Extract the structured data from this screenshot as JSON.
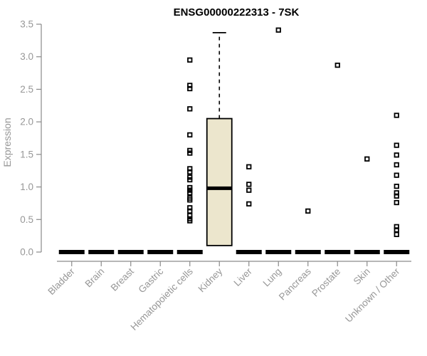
{
  "chart_data": {
    "type": "boxplot",
    "title": "ENSG00000222313 - 7SK",
    "ylabel": "Expression",
    "xlabel": "",
    "ylim": [
      0,
      3.5
    ],
    "ytick_labels": [
      "0.0",
      "0.5",
      "1.0",
      "1.5",
      "2.0",
      "2.5",
      "3.0",
      "3.5"
    ],
    "grid": false,
    "legend": null,
    "categories": [
      "Bladder",
      "Brain",
      "Breast",
      "Gastric",
      "Hematopoietic cells",
      "Kidney",
      "Liver",
      "Lung",
      "Pancreas",
      "Prostate",
      "Skin",
      "Unknown / Other"
    ],
    "boxes": [
      {
        "category": "Bladder",
        "median": 0,
        "q1": 0,
        "q3": 0,
        "whisker_low": null,
        "whisker_high": null,
        "outliers": []
      },
      {
        "category": "Brain",
        "median": 0,
        "q1": 0,
        "q3": 0,
        "whisker_low": null,
        "whisker_high": null,
        "outliers": []
      },
      {
        "category": "Breast",
        "median": 0,
        "q1": 0,
        "q3": 0,
        "whisker_low": null,
        "whisker_high": null,
        "outliers": []
      },
      {
        "category": "Gastric",
        "median": 0,
        "q1": 0,
        "q3": 0,
        "whisker_low": null,
        "whisker_high": null,
        "outliers": []
      },
      {
        "category": "Hematopoietic cells",
        "median": 0,
        "q1": 0,
        "q3": 0,
        "whisker_low": null,
        "whisker_high": null,
        "outliers": [
          2.95,
          2.56,
          2.51,
          2.2,
          1.8,
          1.56,
          1.52,
          1.28,
          1.23,
          1.15,
          1.11,
          0.99,
          0.95,
          0.91,
          0.83,
          0.8,
          0.68,
          0.63,
          0.56,
          0.51,
          0.48
        ]
      },
      {
        "category": "Kidney",
        "median": 0.98,
        "q1": 0.1,
        "q3": 2.05,
        "whisker_low": null,
        "whisker_high": 3.37,
        "outliers": []
      },
      {
        "category": "Liver",
        "median": 0,
        "q1": 0,
        "q3": 0,
        "whisker_low": null,
        "whisker_high": null,
        "outliers": [
          1.31,
          1.04,
          0.95,
          0.74
        ]
      },
      {
        "category": "Lung",
        "median": 0,
        "q1": 0,
        "q3": 0,
        "whisker_low": null,
        "whisker_high": null,
        "outliers": [
          3.41
        ]
      },
      {
        "category": "Pancreas",
        "median": 0,
        "q1": 0,
        "q3": 0,
        "whisker_low": null,
        "whisker_high": null,
        "outliers": [
          0.63
        ]
      },
      {
        "category": "Prostate",
        "median": 0,
        "q1": 0,
        "q3": 0,
        "whisker_low": null,
        "whisker_high": null,
        "outliers": [
          2.87
        ]
      },
      {
        "category": "Skin",
        "median": 0,
        "q1": 0,
        "q3": 0,
        "whisker_low": null,
        "whisker_high": null,
        "outliers": [
          1.43
        ]
      },
      {
        "category": "Unknown / Other",
        "median": 0,
        "q1": 0,
        "q3": 0,
        "whisker_low": null,
        "whisker_high": null,
        "outliers": [
          2.1,
          1.64,
          1.49,
          1.34,
          1.18,
          1.01,
          0.91,
          0.86,
          0.76,
          0.39,
          0.34,
          0.27
        ]
      }
    ],
    "colors": {
      "background": "#ffffff",
      "title": "#000000",
      "axis_line": "#8a8a8a",
      "tick_label": "#979797",
      "box_fill": "#ece6cd",
      "box_stroke": "#000000",
      "median": "#000000",
      "outlier": "#000000"
    }
  }
}
